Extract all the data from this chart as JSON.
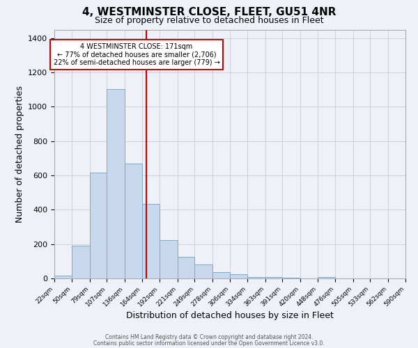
{
  "title": "4, WESTMINSTER CLOSE, FLEET, GU51 4NR",
  "subtitle": "Size of property relative to detached houses in Fleet",
  "xlabel": "Distribution of detached houses by size in Fleet",
  "ylabel": "Number of detached properties",
  "bar_color": "#c8d9ee",
  "bar_edge_color": "#7aaad0",
  "vline_x": 171,
  "vline_color": "#cc0000",
  "annotation_box_color": "#cc0000",
  "annotation_lines": [
    "4 WESTMINSTER CLOSE: 171sqm",
    "← 77% of detached houses are smaller (2,706)",
    "22% of semi-detached houses are larger (779) →"
  ],
  "bin_edges": [
    22,
    50,
    79,
    107,
    136,
    164,
    192,
    221,
    249,
    278,
    306,
    334,
    363,
    391,
    420,
    448,
    476,
    505,
    533,
    562,
    590
  ],
  "bin_heights": [
    15,
    190,
    615,
    1105,
    670,
    435,
    225,
    125,
    80,
    35,
    25,
    8,
    8,
    5,
    2,
    10,
    0,
    0,
    0,
    0
  ],
  "ylim": [
    0,
    1450
  ],
  "yticks": [
    0,
    200,
    400,
    600,
    800,
    1000,
    1200,
    1400
  ],
  "footer_line1": "Contains HM Land Registry data © Crown copyright and database right 2024.",
  "footer_line2": "Contains public sector information licensed under the Open Government Licence v3.0.",
  "background_color": "#eef2f8"
}
